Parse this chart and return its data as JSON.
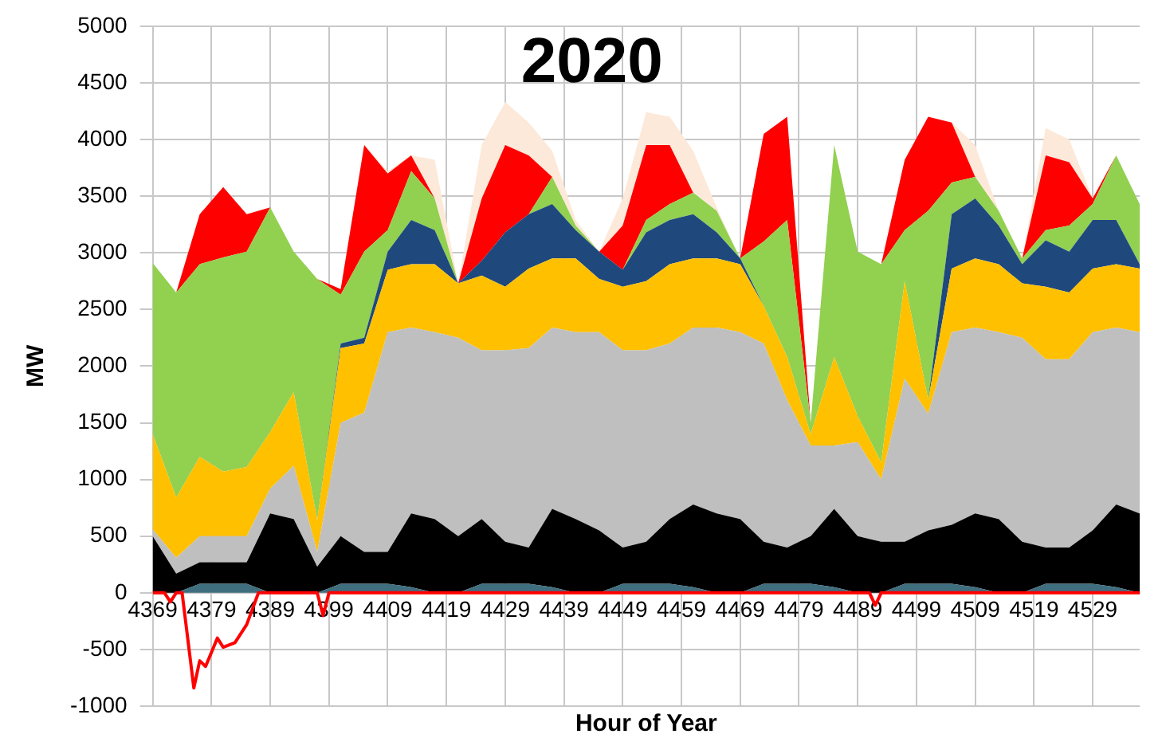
{
  "chart_data": {
    "type": "area",
    "title": "2020",
    "xlabel": "Hour of Year",
    "ylabel": "MW",
    "stacked": true,
    "x": [
      4369,
      4373,
      4377,
      4381,
      4385,
      4389,
      4393,
      4397,
      4401,
      4405,
      4409,
      4413,
      4417,
      4421,
      4425,
      4429,
      4433,
      4437,
      4441,
      4445,
      4449,
      4453,
      4457,
      4461,
      4465,
      4469,
      4473,
      4477,
      4481,
      4485,
      4489,
      4493,
      4497,
      4501,
      4505,
      4509,
      4513,
      4517,
      4521,
      4525,
      4529,
      4533,
      4537
    ],
    "series": [
      {
        "color": "#3f6e7f",
        "values": [
          0,
          0,
          80,
          80,
          80,
          0,
          0,
          0,
          80,
          80,
          80,
          50,
          0,
          0,
          80,
          80,
          80,
          50,
          0,
          0,
          80,
          80,
          80,
          50,
          0,
          0,
          80,
          80,
          80,
          50,
          0,
          0,
          80,
          80,
          80,
          50,
          0,
          0,
          80,
          80,
          80,
          50,
          0
        ]
      },
      {
        "color": "#000000",
        "values": [
          500,
          170,
          190,
          190,
          190,
          700,
          650,
          230,
          420,
          280,
          280,
          650,
          650,
          500,
          570,
          370,
          320,
          690,
          650,
          550,
          320,
          370,
          570,
          730,
          700,
          650,
          370,
          320,
          420,
          690,
          500,
          450,
          370,
          470,
          520,
          650,
          650,
          450,
          320,
          320,
          470,
          730,
          700
        ]
      },
      {
        "color": "#bfbfbf",
        "values": [
          60,
          140,
          230,
          230,
          230,
          220,
          470,
          130,
          1000,
          1230,
          1940,
          1640,
          1650,
          1750,
          1490,
          1690,
          1760,
          1600,
          1650,
          1750,
          1740,
          1690,
          1550,
          1560,
          1640,
          1650,
          1750,
          1300,
          800,
          560,
          830,
          550,
          1440,
          1030,
          1700,
          1640,
          1650,
          1800,
          1660,
          1660,
          1750,
          1560,
          1600
        ]
      },
      {
        "color": "#ffc000",
        "values": [
          840,
          530,
          700,
          570,
          610,
          500,
          650,
          280,
          660,
          610,
          550,
          560,
          600,
          480,
          660,
          560,
          700,
          610,
          650,
          470,
          560,
          610,
          700,
          610,
          610,
          600,
          330,
          380,
          100,
          780,
          230,
          150,
          860,
          120,
          560,
          610,
          600,
          480,
          640,
          590,
          560,
          560,
          560
        ]
      },
      {
        "color": "#1f497d",
        "values": [
          0,
          0,
          0,
          0,
          0,
          0,
          0,
          0,
          40,
          50,
          160,
          390,
          300,
          0,
          130,
          480,
          480,
          480,
          250,
          240,
          150,
          430,
          390,
          390,
          230,
          50,
          0,
          0,
          0,
          0,
          0,
          0,
          0,
          0,
          480,
          530,
          340,
          170,
          410,
          360,
          430,
          390,
          40
        ]
      },
      {
        "color": "#92d050",
        "values": [
          1510,
          1810,
          1700,
          1890,
          1900,
          1980,
          1240,
          2130,
          430,
          760,
          190,
          430,
          280,
          0,
          0,
          0,
          0,
          240,
          40,
          0,
          0,
          110,
          140,
          190,
          190,
          0,
          570,
          1210,
          100,
          1870,
          1450,
          1750,
          450,
          1670,
          280,
          190,
          130,
          50,
          90,
          230,
          140,
          570,
          530
        ]
      },
      {
        "color": "#ff0000",
        "values": [
          0,
          0,
          440,
          620,
          330,
          0,
          0,
          0,
          50,
          940,
          500,
          140,
          0,
          0,
          550,
          770,
          520,
          0,
          0,
          0,
          390,
          660,
          520,
          0,
          0,
          0,
          950,
          910,
          0,
          0,
          0,
          0,
          620,
          830,
          530,
          0,
          0,
          0,
          660,
          560,
          50,
          0,
          0
        ]
      },
      {
        "color": "#fde9d9",
        "values": [
          0,
          0,
          0,
          0,
          0,
          0,
          0,
          0,
          0,
          0,
          20,
          0,
          340,
          0,
          470,
          380,
          290,
          230,
          50,
          0,
          240,
          290,
          250,
          370,
          30,
          0,
          0,
          0,
          0,
          0,
          0,
          0,
          0,
          0,
          0,
          280,
          0,
          0,
          240,
          200,
          0,
          0,
          0
        ]
      },
      {
        "type": "line",
        "color": "#ff0000",
        "x": [
          4369,
          4371,
          4372,
          4373,
          4374,
          4376,
          4377,
          4378,
          4380,
          4381,
          4383,
          4385,
          4387,
          4397,
          4398,
          4399,
          4491,
          4492,
          4493,
          4537
        ],
        "values": [
          0,
          0,
          -80,
          0,
          0,
          -840,
          -600,
          -650,
          -400,
          -480,
          -440,
          -280,
          0,
          0,
          -200,
          0,
          0,
          -110,
          0,
          0
        ]
      }
    ],
    "xlim": [
      4369,
      4537
    ],
    "xticks": [
      4369,
      4379,
      4389,
      4399,
      4409,
      4419,
      4429,
      4439,
      4449,
      4459,
      4469,
      4479,
      4489,
      4499,
      4509,
      4519,
      4529
    ],
    "ylim": [
      -1000,
      5000
    ],
    "yticks": [
      -1000,
      -500,
      0,
      500,
      1000,
      1500,
      2000,
      2500,
      3000,
      3500,
      4000,
      4500,
      5000
    ],
    "grid": true,
    "marker": "none"
  }
}
